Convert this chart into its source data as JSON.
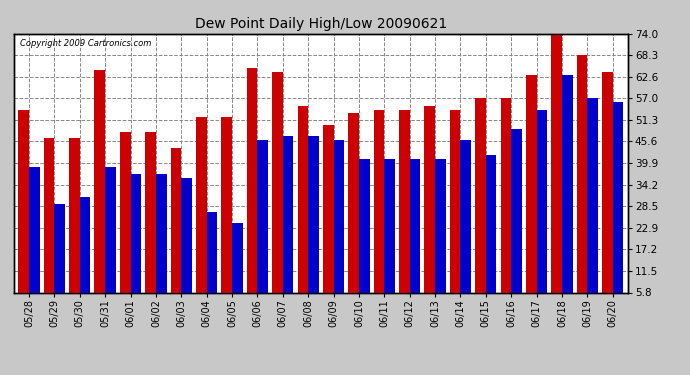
{
  "title": "Dew Point Daily High/Low 20090621",
  "copyright": "Copyright 2009 Cartronics.com",
  "categories": [
    "05/28",
    "05/29",
    "05/30",
    "05/31",
    "06/01",
    "06/02",
    "06/03",
    "06/04",
    "06/05",
    "06/06",
    "06/07",
    "06/08",
    "06/09",
    "06/10",
    "06/11",
    "06/12",
    "06/13",
    "06/14",
    "06/15",
    "06/16",
    "06/17",
    "06/18",
    "06/19",
    "06/20"
  ],
  "high_values": [
    54.0,
    46.4,
    46.4,
    64.4,
    48.2,
    48.2,
    44.0,
    52.0,
    52.0,
    65.0,
    64.0,
    55.0,
    50.0,
    53.0,
    54.0,
    54.0,
    55.0,
    54.0,
    57.0,
    57.0,
    63.0,
    75.0,
    68.5,
    64.0
  ],
  "low_values": [
    39.0,
    29.0,
    31.0,
    39.0,
    37.0,
    37.0,
    36.0,
    27.0,
    24.0,
    46.0,
    47.0,
    47.0,
    46.0,
    41.0,
    41.0,
    41.0,
    41.0,
    46.0,
    42.0,
    49.0,
    54.0,
    63.0,
    57.0,
    56.0
  ],
  "high_color": "#cc0000",
  "low_color": "#0000cc",
  "background_color": "#c8c8c8",
  "plot_bg_color": "#ffffff",
  "grid_color": "#888888",
  "yticks": [
    5.8,
    11.5,
    17.2,
    22.9,
    28.5,
    34.2,
    39.9,
    45.6,
    51.3,
    57.0,
    62.6,
    68.3,
    74.0
  ],
  "ymin": 5.8,
  "ymax": 74.0,
  "bar_width": 0.42
}
